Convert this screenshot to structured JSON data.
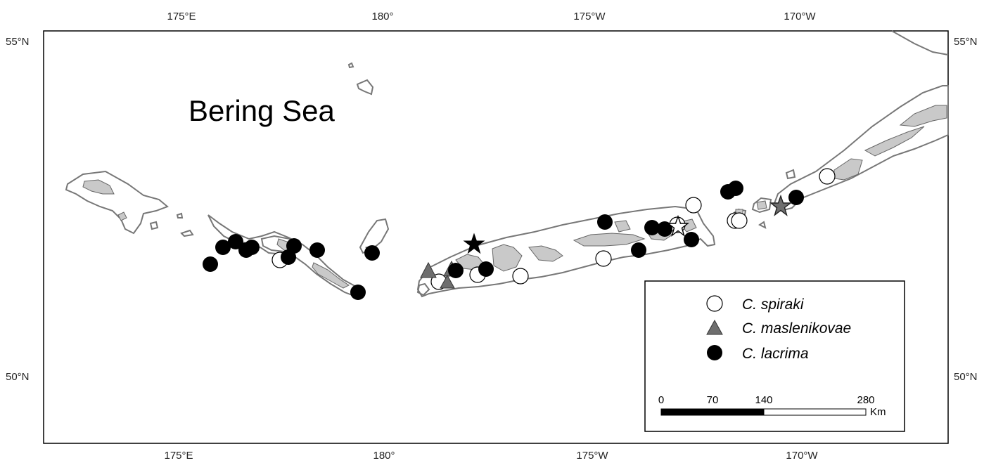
{
  "map": {
    "sea_label": "Bering Sea",
    "lon_labels": [
      "175°E",
      "180°",
      "175°W",
      "170°W"
    ],
    "lat_labels": [
      "55°N",
      "50°N"
    ]
  },
  "legend": {
    "items": [
      {
        "label": "C. spiraki",
        "symbol": "circle",
        "fill": "#ffffff"
      },
      {
        "label": "C. maslenikovae",
        "symbol": "triangle",
        "fill": "#6e6e6e"
      },
      {
        "label": "C. lacrima",
        "symbol": "circle",
        "fill": "#000000"
      }
    ]
  },
  "scale_bar": {
    "ticks": [
      "0",
      "70",
      "140",
      "280"
    ],
    "unit": "Km"
  },
  "colors": {
    "spiraki": "#ffffff",
    "maslenikovae": "#6e6e6e",
    "lacrima": "#000000",
    "land": "#c9c9c9",
    "coastline": "#777777"
  }
}
